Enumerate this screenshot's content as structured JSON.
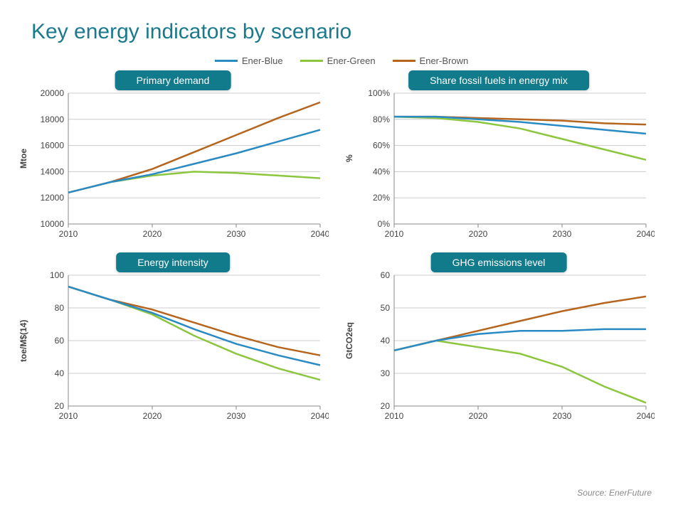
{
  "title": "Key energy indicators by scenario",
  "source": "Source: EnerFuture",
  "legend": {
    "items": [
      {
        "label": "Ener-Blue",
        "color": "#2a8ac4"
      },
      {
        "label": "Ener-Green",
        "color": "#8cc63f"
      },
      {
        "label": "Ener-Brown",
        "color": "#b5651d"
      }
    ]
  },
  "panel_title_bg": "#117a8b",
  "panel_title_fg": "#ffffff",
  "axis_color": "#888888",
  "grid_color": "#cccccc",
  "background_color": "#ffffff",
  "x_years": [
    2010,
    2015,
    2020,
    2025,
    2030,
    2035,
    2040
  ],
  "x_ticks": [
    2010,
    2020,
    2030,
    2040
  ],
  "charts": [
    {
      "id": "primary-demand",
      "title": "Primary demand",
      "ylabel": "Mtoe",
      "ylim": [
        10000,
        20000
      ],
      "ytick_step": 2000,
      "ytick_format": "plain",
      "series": {
        "blue": [
          12400,
          13200,
          13800,
          14600,
          15400,
          16300,
          17200
        ],
        "green": [
          12400,
          13200,
          13700,
          14000,
          13900,
          13700,
          13500
        ],
        "brown": [
          12400,
          13200,
          14200,
          15500,
          16800,
          18100,
          19300
        ]
      }
    },
    {
      "id": "fossil-share",
      "title": "Share fossil fuels in energy mix",
      "ylabel": "%",
      "ylim": [
        0,
        100
      ],
      "ytick_step": 20,
      "ytick_format": "percent",
      "series": {
        "blue": [
          82,
          82,
          80,
          78,
          75,
          72,
          69
        ],
        "green": [
          82,
          81,
          78,
          73,
          65,
          57,
          49
        ],
        "brown": [
          82,
          82,
          81,
          80,
          79,
          77,
          76
        ]
      }
    },
    {
      "id": "energy-intensity",
      "title": "Energy intensity",
      "ylabel": "toe/M$(14)",
      "ylim": [
        20,
        100
      ],
      "ytick_step": 20,
      "ytick_format": "plain",
      "series": {
        "blue": [
          93,
          85,
          77,
          67,
          58,
          51,
          45
        ],
        "green": [
          93,
          85,
          76,
          63,
          52,
          43,
          36
        ],
        "brown": [
          93,
          85,
          79,
          71,
          63,
          56,
          51
        ]
      }
    },
    {
      "id": "ghg-emissions",
      "title": "GHG emissions level",
      "ylabel": "GtCO2eq",
      "ylim": [
        20,
        60
      ],
      "ytick_step": 10,
      "ytick_format": "plain",
      "series": {
        "blue": [
          37,
          40,
          42,
          43,
          43,
          43.5,
          43.5
        ],
        "green": [
          37,
          40,
          38,
          36,
          32,
          26,
          21
        ],
        "brown": [
          37,
          40,
          43,
          46,
          49,
          51.5,
          53.5
        ]
      }
    }
  ]
}
